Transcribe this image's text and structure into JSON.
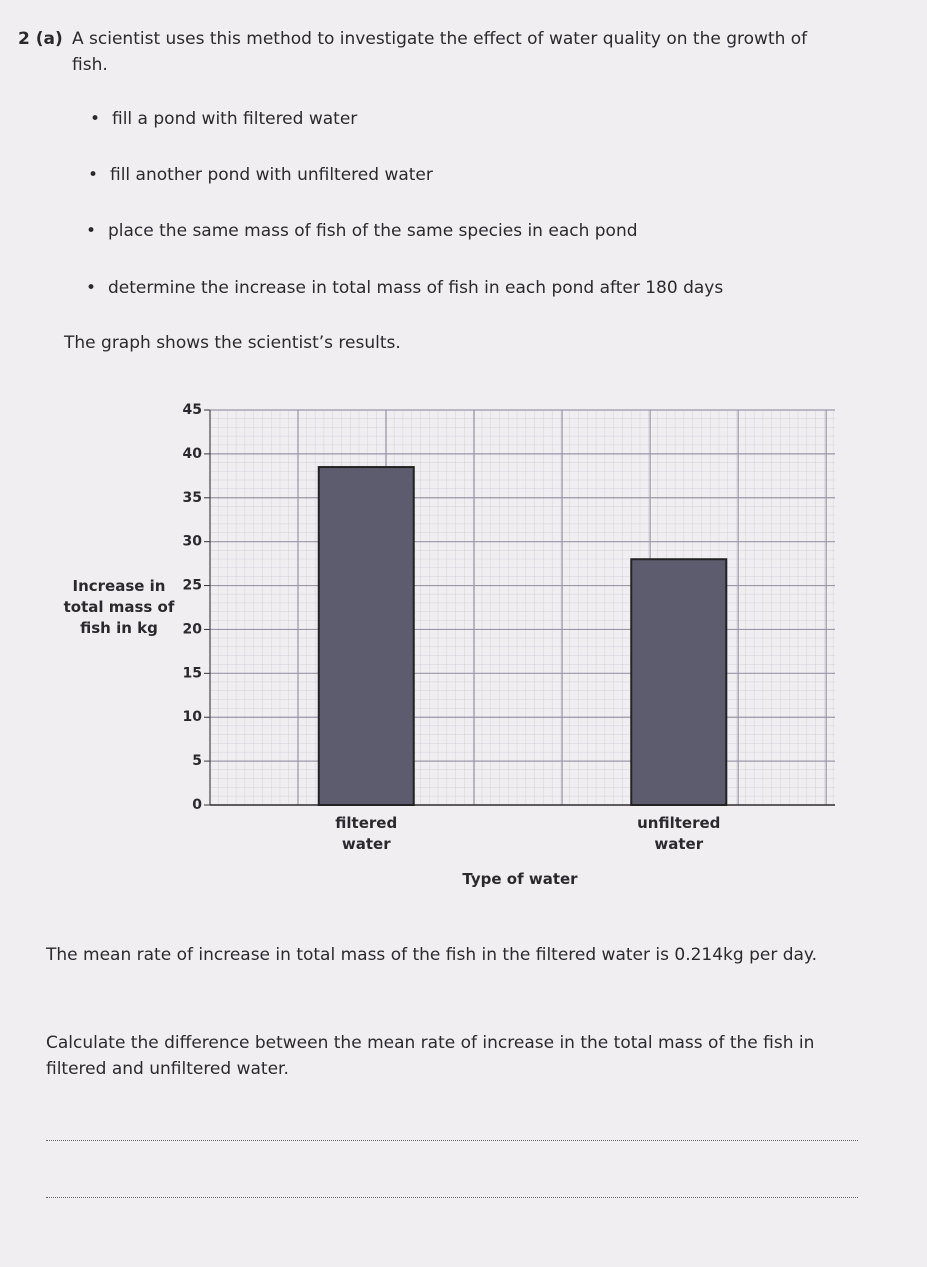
{
  "question": {
    "number": "2 (a)",
    "text": "A scientist uses this method to investigate the effect of water quality on the growth of fish."
  },
  "bullets": [
    "fill a pond with filtered water",
    "fill another pond with unfiltered water",
    "place the same mass of fish of the same species in each pond",
    "determine the increase in total mass of fish in each pond after 180 days"
  ],
  "intro": "The graph shows the scientist’s results.",
  "chart_data": {
    "type": "bar",
    "ylabel": "Increase in total mass of fish in kg",
    "xlabel": "Type of water",
    "categories": [
      "filtered water",
      "unfiltered water"
    ],
    "values": [
      38.5,
      28
    ],
    "color": "#5d5b6e",
    "ylim": [
      0,
      45
    ],
    "yticks": [
      0,
      5,
      10,
      15,
      20,
      25,
      30,
      35,
      40,
      45
    ],
    "grid": true
  },
  "paragraphs": [
    "The mean rate of increase in total mass of the fish in the filtered water is 0.214kg per day.",
    "Calculate the difference between the mean rate of increase in the total mass of the fish in filtered and unfiltered water."
  ]
}
